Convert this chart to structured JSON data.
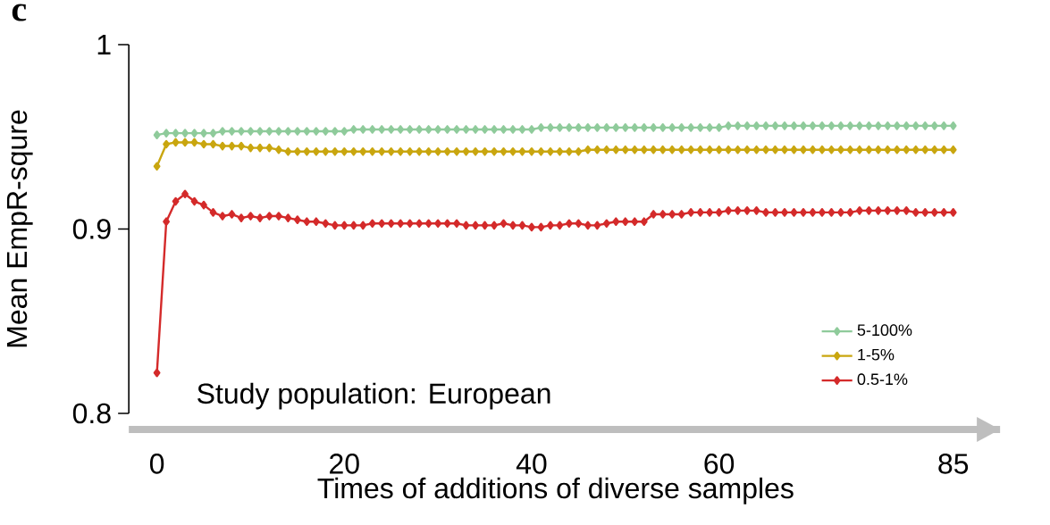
{
  "chart_data": {
    "type": "line",
    "ylabel": "Mean EmpR-squre",
    "xlabel": "Times of additions of diverse samples",
    "annotations": [
      "c",
      "Study population: European"
    ],
    "x": [
      0,
      1,
      2,
      3,
      4,
      5,
      6,
      7,
      8,
      9,
      10,
      11,
      12,
      13,
      14,
      15,
      16,
      17,
      18,
      19,
      20,
      21,
      22,
      23,
      24,
      25,
      26,
      27,
      28,
      29,
      30,
      31,
      32,
      33,
      34,
      35,
      36,
      37,
      38,
      39,
      40,
      41,
      42,
      43,
      44,
      45,
      46,
      47,
      48,
      49,
      50,
      51,
      52,
      53,
      54,
      55,
      56,
      57,
      58,
      59,
      60,
      61,
      62,
      63,
      64,
      65,
      66,
      67,
      68,
      69,
      70,
      71,
      72,
      73,
      74,
      75,
      76,
      77,
      78,
      79,
      80,
      81,
      82,
      83,
      84,
      85
    ],
    "series": [
      {
        "name": "5-100%",
        "color": "#8fcb9b",
        "values": [
          0.951,
          0.952,
          0.952,
          0.952,
          0.952,
          0.952,
          0.952,
          0.953,
          0.953,
          0.953,
          0.953,
          0.953,
          0.953,
          0.953,
          0.953,
          0.953,
          0.953,
          0.953,
          0.953,
          0.953,
          0.953,
          0.954,
          0.954,
          0.954,
          0.954,
          0.954,
          0.954,
          0.954,
          0.954,
          0.954,
          0.954,
          0.954,
          0.954,
          0.954,
          0.954,
          0.954,
          0.954,
          0.954,
          0.954,
          0.954,
          0.954,
          0.955,
          0.955,
          0.955,
          0.955,
          0.955,
          0.955,
          0.955,
          0.955,
          0.955,
          0.955,
          0.955,
          0.955,
          0.955,
          0.955,
          0.955,
          0.955,
          0.955,
          0.955,
          0.955,
          0.955,
          0.956,
          0.956,
          0.956,
          0.956,
          0.956,
          0.956,
          0.956,
          0.956,
          0.956,
          0.956,
          0.956,
          0.956,
          0.956,
          0.956,
          0.956,
          0.956,
          0.956,
          0.956,
          0.956,
          0.956,
          0.956,
          0.956,
          0.956,
          0.956,
          0.956
        ]
      },
      {
        "name": "1-5%",
        "color": "#c9a60f",
        "values": [
          0.934,
          0.946,
          0.947,
          0.947,
          0.947,
          0.946,
          0.946,
          0.945,
          0.945,
          0.945,
          0.944,
          0.944,
          0.944,
          0.943,
          0.942,
          0.942,
          0.942,
          0.942,
          0.942,
          0.942,
          0.942,
          0.942,
          0.942,
          0.942,
          0.942,
          0.942,
          0.942,
          0.942,
          0.942,
          0.942,
          0.942,
          0.942,
          0.942,
          0.942,
          0.942,
          0.942,
          0.942,
          0.942,
          0.942,
          0.942,
          0.942,
          0.942,
          0.942,
          0.942,
          0.942,
          0.942,
          0.943,
          0.943,
          0.943,
          0.943,
          0.943,
          0.943,
          0.943,
          0.943,
          0.943,
          0.943,
          0.943,
          0.943,
          0.943,
          0.943,
          0.943,
          0.943,
          0.943,
          0.943,
          0.943,
          0.943,
          0.943,
          0.943,
          0.943,
          0.943,
          0.943,
          0.943,
          0.943,
          0.943,
          0.943,
          0.943,
          0.943,
          0.943,
          0.943,
          0.943,
          0.943,
          0.943,
          0.943,
          0.943,
          0.943,
          0.943
        ]
      },
      {
        "name": "0.5-1%",
        "color": "#d42a2a",
        "values": [
          0.822,
          0.904,
          0.915,
          0.919,
          0.915,
          0.913,
          0.909,
          0.907,
          0.908,
          0.906,
          0.907,
          0.906,
          0.907,
          0.907,
          0.906,
          0.905,
          0.904,
          0.904,
          0.903,
          0.902,
          0.902,
          0.902,
          0.902,
          0.903,
          0.903,
          0.903,
          0.903,
          0.903,
          0.903,
          0.903,
          0.903,
          0.903,
          0.903,
          0.902,
          0.902,
          0.902,
          0.902,
          0.903,
          0.902,
          0.902,
          0.901,
          0.901,
          0.902,
          0.902,
          0.903,
          0.903,
          0.902,
          0.902,
          0.903,
          0.904,
          0.904,
          0.904,
          0.904,
          0.908,
          0.908,
          0.908,
          0.908,
          0.909,
          0.909,
          0.909,
          0.909,
          0.91,
          0.91,
          0.91,
          0.91,
          0.909,
          0.909,
          0.909,
          0.909,
          0.909,
          0.909,
          0.909,
          0.909,
          0.909,
          0.909,
          0.91,
          0.91,
          0.91,
          0.91,
          0.91,
          0.91,
          0.909,
          0.909,
          0.909,
          0.909,
          0.909
        ]
      }
    ],
    "xlim": [
      -3,
      90
    ],
    "ylim": [
      0.8,
      1
    ],
    "xticks": [
      0,
      20,
      40,
      60,
      85
    ],
    "yticks": [
      0.8,
      0.9,
      1
    ],
    "marker": "diamond",
    "line_style": "solid",
    "legend": "bottom right"
  }
}
